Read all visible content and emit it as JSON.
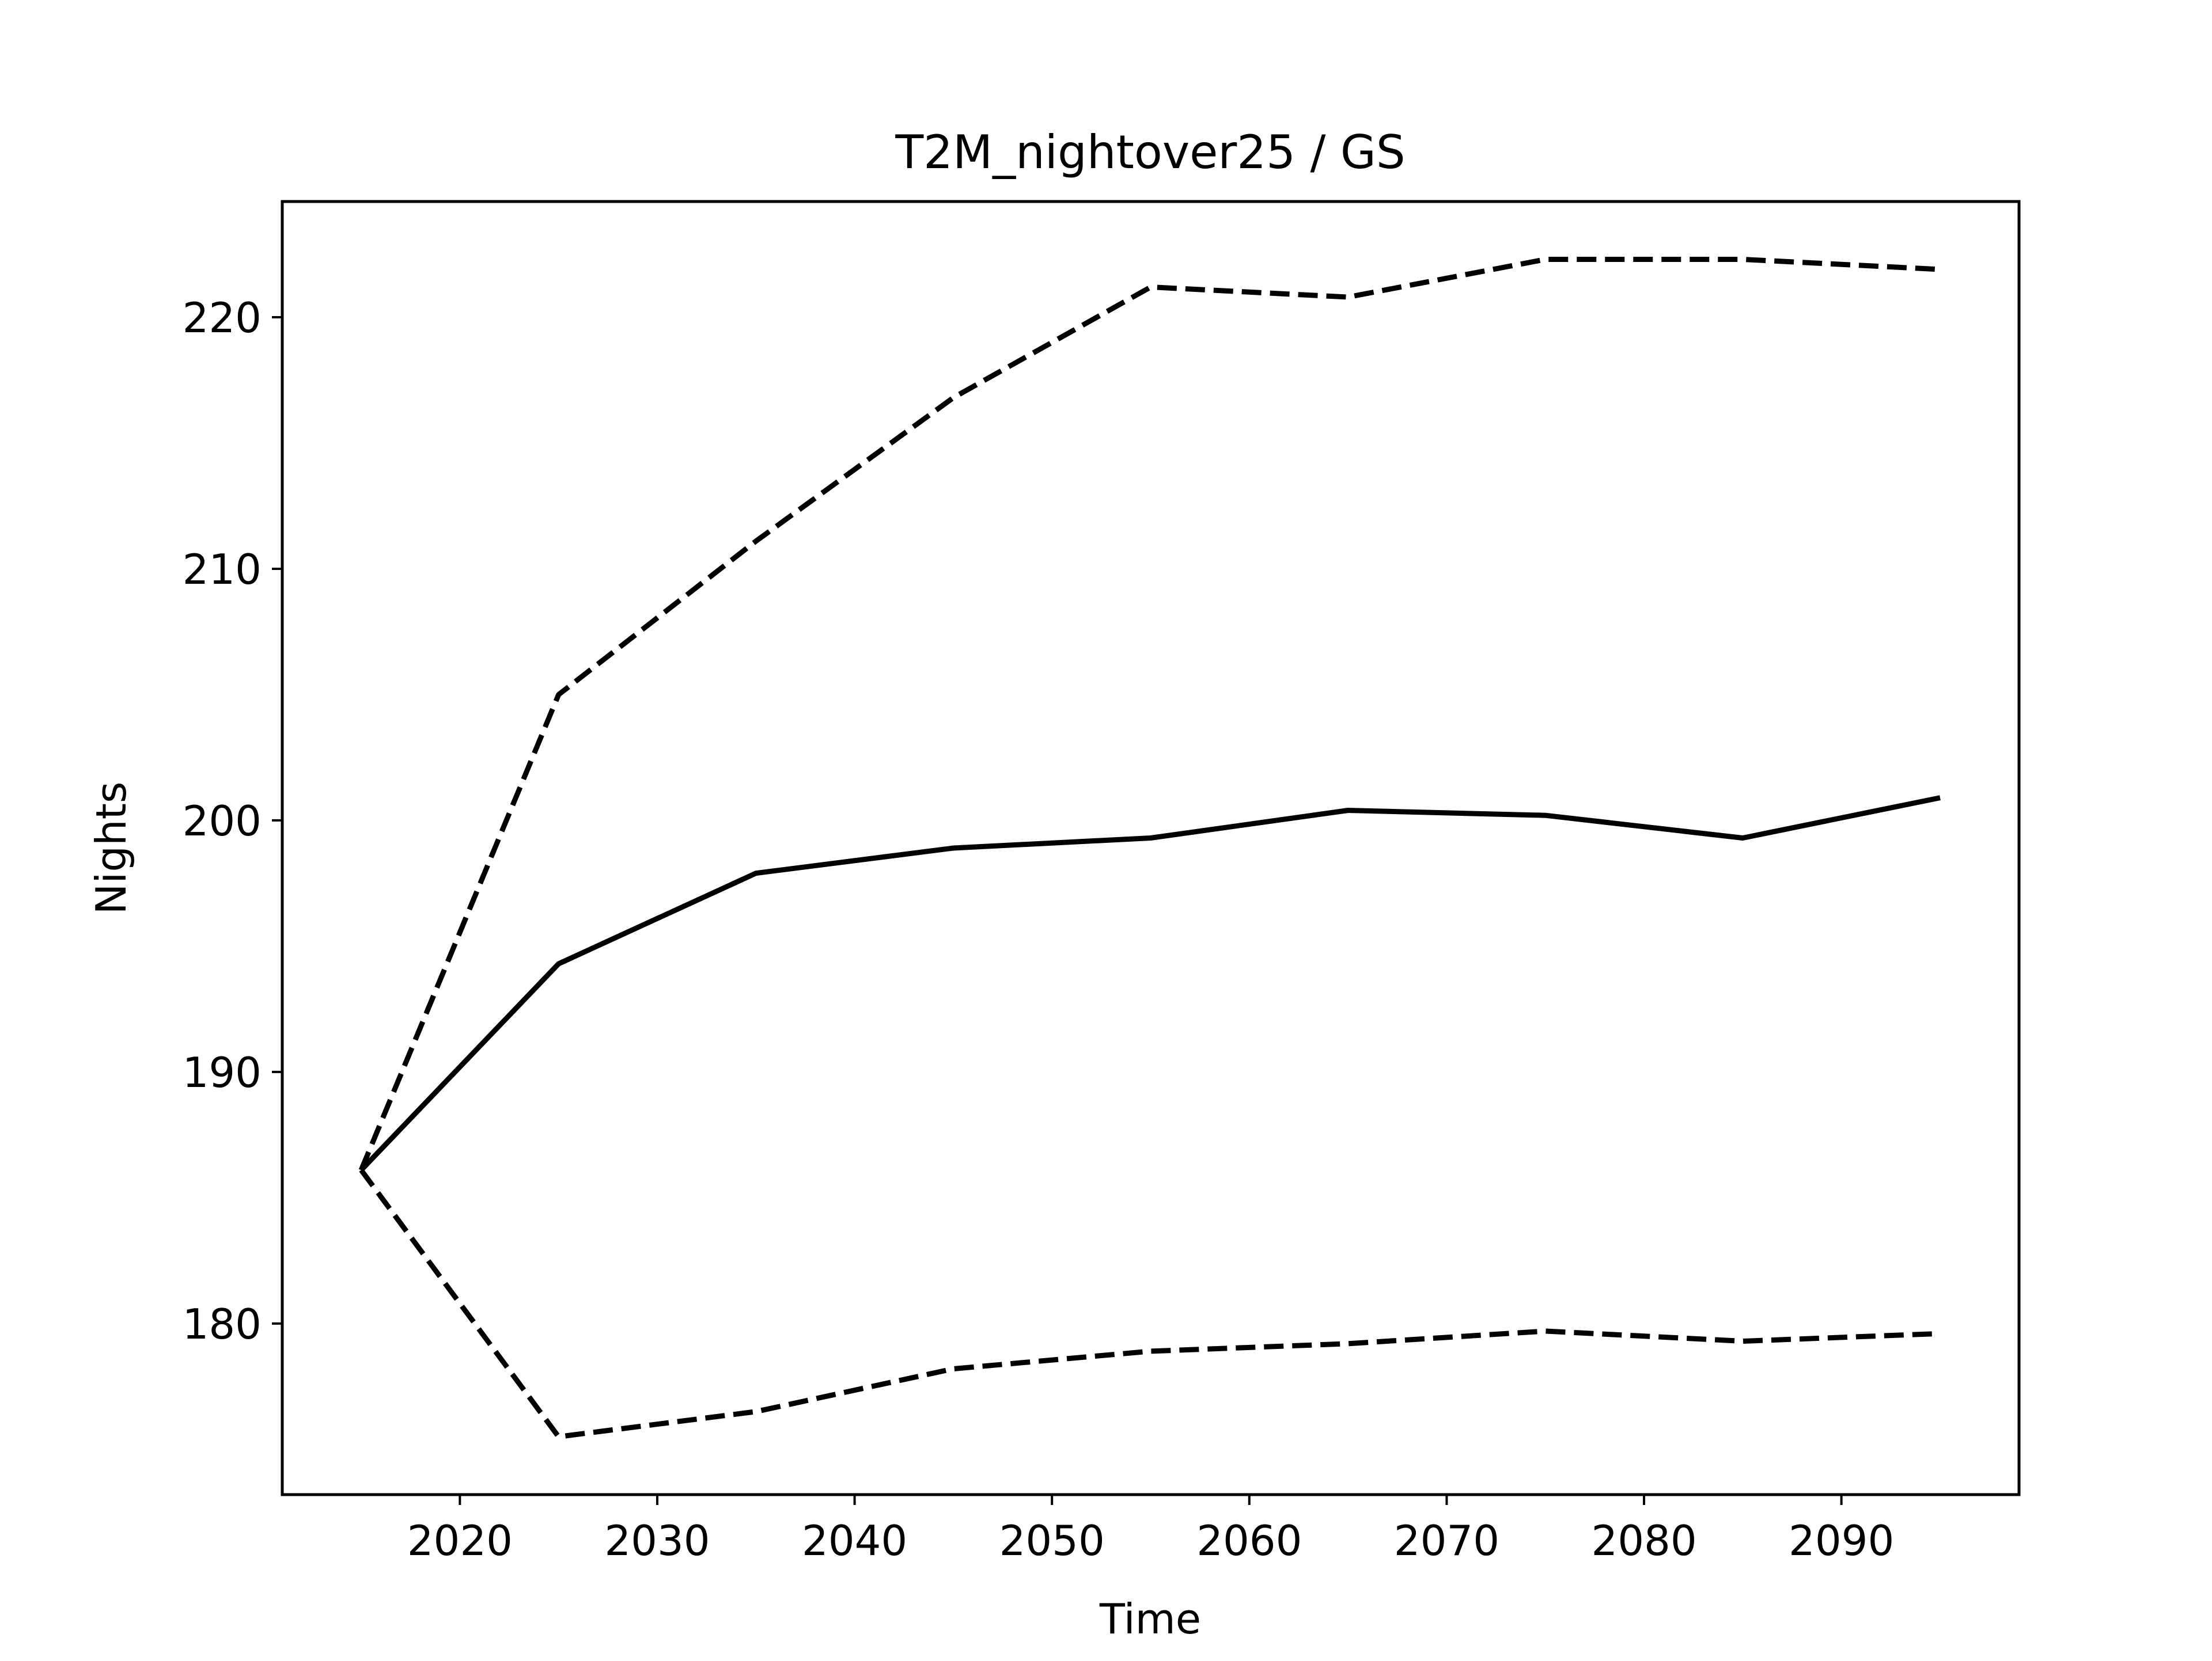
{
  "chart_data": {
    "type": "line",
    "title": "T2M_nightover25 / GS",
    "xlabel": "Time",
    "ylabel": "Nights",
    "xlim": [
      2011,
      2099
    ],
    "ylim": [
      173.2,
      224.6
    ],
    "xticks": [
      2020,
      2030,
      2040,
      2050,
      2060,
      2070,
      2080,
      2090
    ],
    "yticks": [
      180,
      190,
      200,
      210,
      220
    ],
    "grid": false,
    "legend": "none",
    "x": [
      2015,
      2025,
      2035,
      2045,
      2055,
      2065,
      2075,
      2085,
      2095
    ],
    "series": [
      {
        "style": "solid",
        "color": "#000000",
        "values": [
          186.1,
          194.3,
          197.9,
          198.9,
          199.3,
          200.4,
          200.2,
          199.3,
          200.9
        ]
      },
      {
        "style": "dashed",
        "color": "#000000",
        "values": [
          186.1,
          205.0,
          211.1,
          216.8,
          221.2,
          220.8,
          222.3,
          222.3,
          221.9
        ]
      },
      {
        "style": "dashed",
        "color": "#000000",
        "values": [
          186.1,
          175.5,
          176.5,
          178.2,
          178.9,
          179.2,
          179.7,
          179.3,
          179.6
        ]
      }
    ]
  }
}
